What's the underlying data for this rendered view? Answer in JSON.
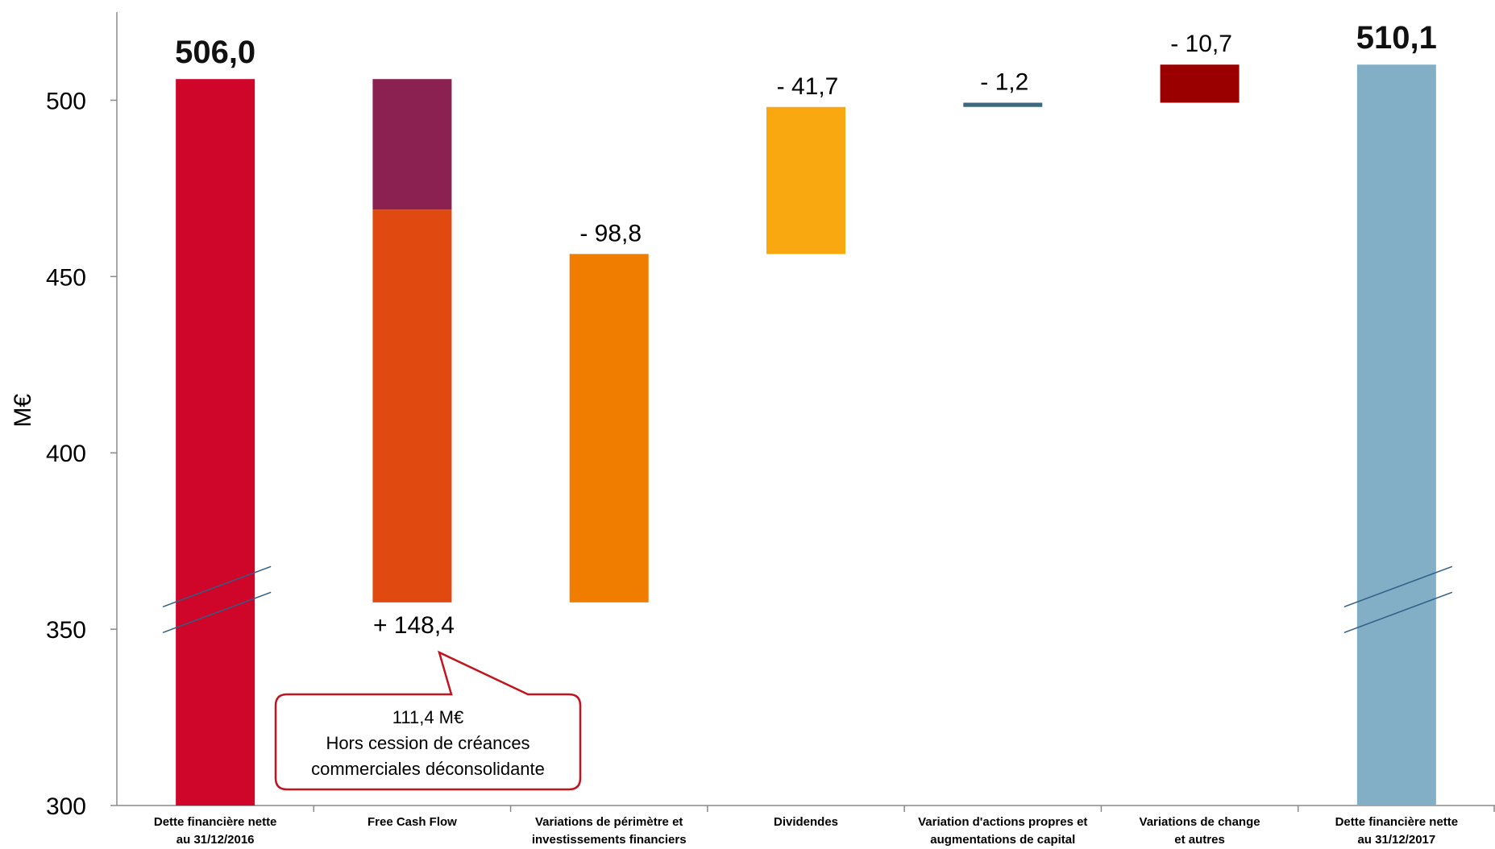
{
  "chart_data": {
    "type": "bar",
    "subtype": "waterfall",
    "ylabel": "M€",
    "ylim": [
      300,
      525
    ],
    "yticks": [
      300,
      350,
      400,
      450,
      500
    ],
    "grid": false,
    "axis_break": true,
    "categories": [
      [
        "Dette financière nette",
        "au 31/12/2016"
      ],
      [
        "Free Cash Flow"
      ],
      [
        "Variations de périmètre et",
        "investissements financiers"
      ],
      [
        "Dividendes"
      ],
      [
        "Variation d'actions propres et",
        "augmentations de capital"
      ],
      [
        "Variations de change",
        "et autres"
      ],
      [
        "Dette financière nette",
        "au 31/12/2017"
      ]
    ],
    "bars": [
      {
        "base": 300,
        "top": 506.0,
        "label": "506,0",
        "bold": true,
        "color": "#d0052a",
        "label_pos": "top"
      },
      {
        "base": 357.6,
        "top": 506.0,
        "label": "+ 148,4",
        "bold": false,
        "color": "#e04a10",
        "label_pos": "bottom",
        "segments": [
          {
            "from": 357.6,
            "to": 469.0,
            "color": "#e04a10"
          },
          {
            "from": 469.0,
            "to": 506.0,
            "color": "#8b2150"
          }
        ]
      },
      {
        "base": 357.6,
        "top": 456.4,
        "label": "- 98,8",
        "bold": false,
        "color": "#f07d00",
        "label_pos": "top"
      },
      {
        "base": 456.4,
        "top": 498.1,
        "label": "- 41,7",
        "bold": false,
        "color": "#f9a80f",
        "label_pos": "top"
      },
      {
        "base": 498.1,
        "top": 499.3,
        "label": "- 1,2",
        "bold": false,
        "color": "#3d6a80",
        "label_pos": "top"
      },
      {
        "base": 499.3,
        "top": 510.1,
        "label": "- 10,7",
        "bold": false,
        "color": "#9b0000",
        "label_pos": "top"
      },
      {
        "base": 300,
        "top": 510.1,
        "label": "510,1",
        "bold": true,
        "color": "#82aec6",
        "label_pos": "top"
      }
    ],
    "callout": {
      "lines": [
        "111,4 M€",
        "Hors cession de créances",
        "commerciales déconsolidante"
      ],
      "border_color": "#c0141e"
    }
  }
}
